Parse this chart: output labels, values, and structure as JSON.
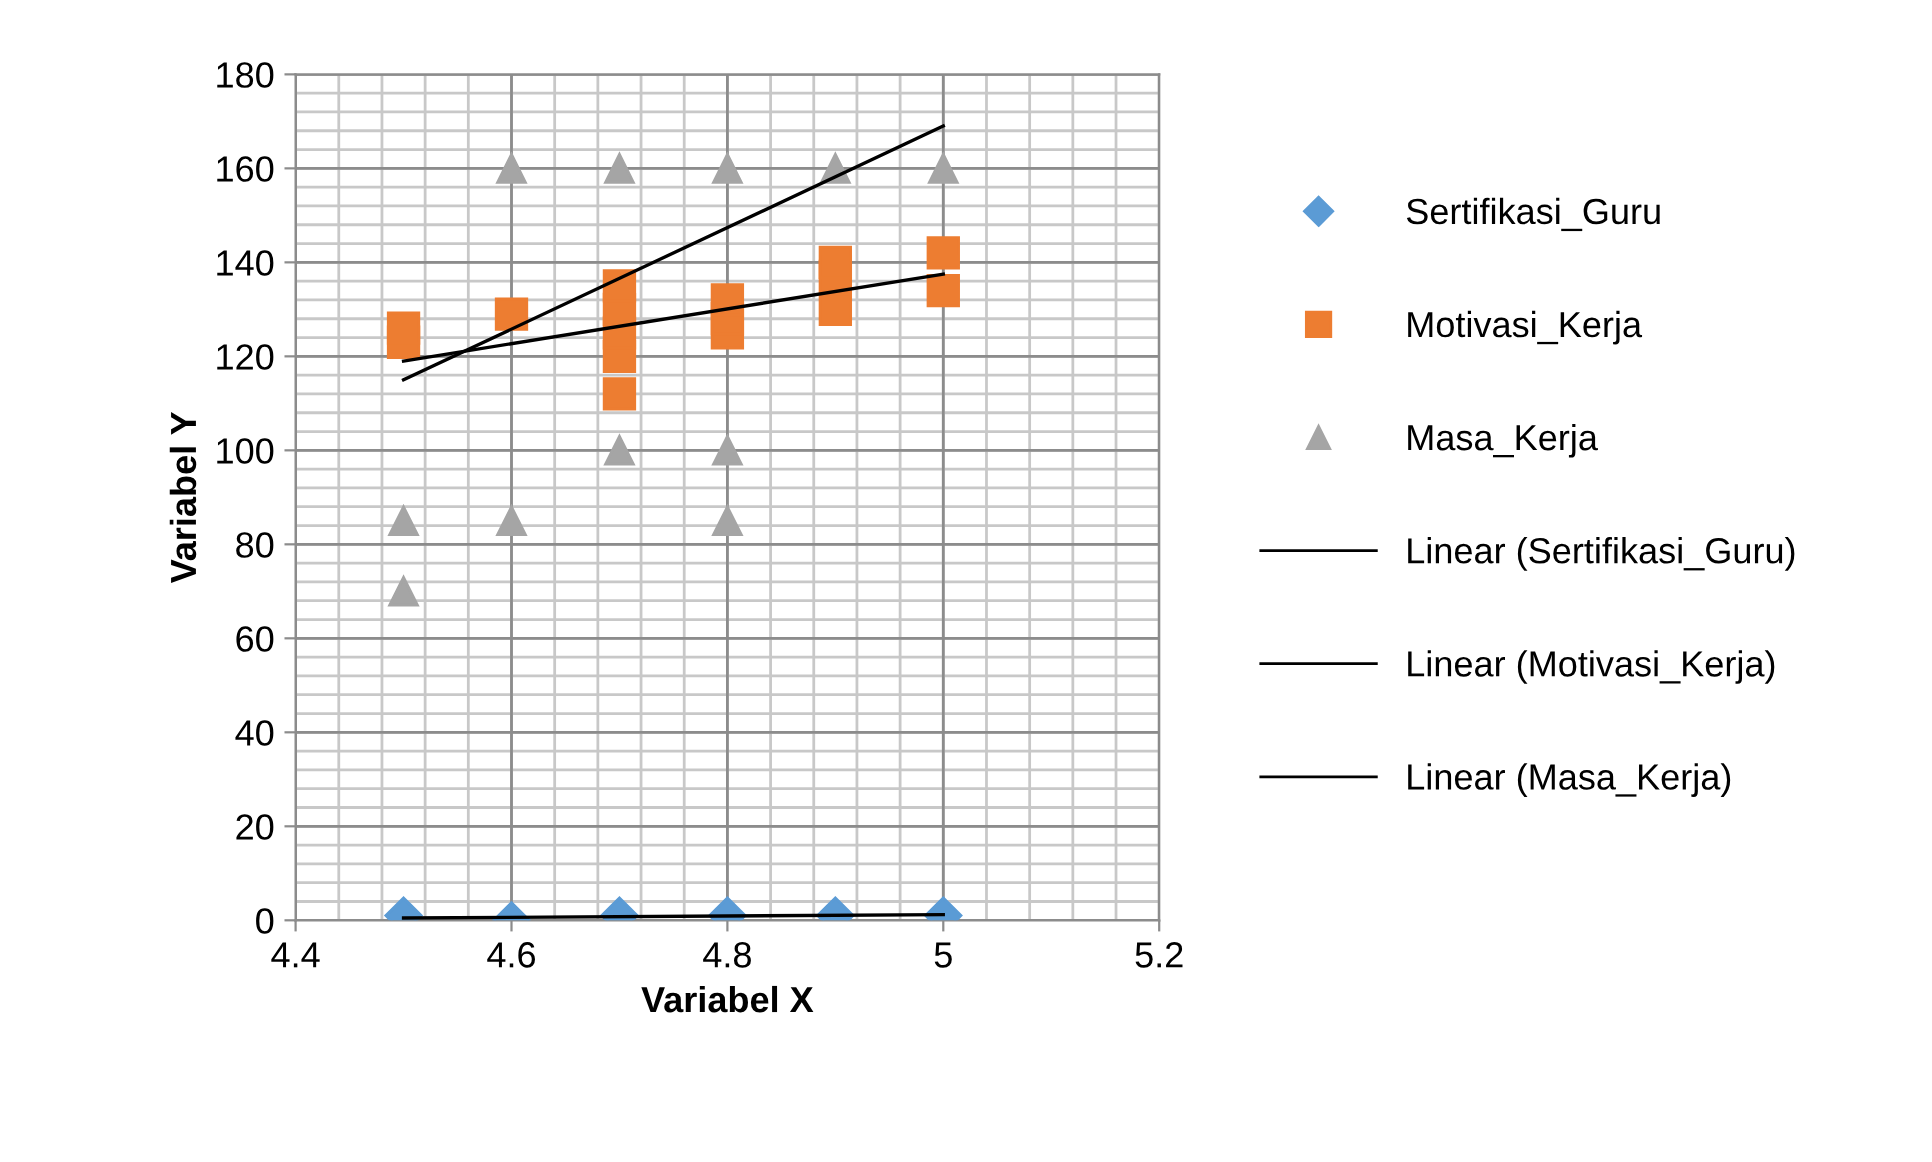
{
  "chart_data": {
    "type": "scatter",
    "xlabel": "Variabel X",
    "ylabel": "Variabel Y",
    "xlim": [
      4.4,
      5.2
    ],
    "xticks": [
      {
        "value": 4.4,
        "label": "4.4"
      },
      {
        "value": 4.6,
        "label": "4.6"
      },
      {
        "value": 4.8,
        "label": "4.8"
      },
      {
        "value": 5,
        "label": "5"
      },
      {
        "value": 5.2,
        "label": "5.2"
      }
    ],
    "ylim": [
      0,
      180
    ],
    "yticks": [
      0,
      20,
      40,
      60,
      80,
      100,
      120,
      140,
      160,
      180
    ],
    "grid": true,
    "legend": "right",
    "series": [
      {
        "name": "Sertifikasi_Guru",
        "marker": "diamond",
        "color": "#5b9bd5",
        "x": [
          4.5,
          4.6,
          4.7,
          4.8,
          4.9,
          5.0
        ],
        "values": [
          1,
          0,
          1,
          1,
          1,
          1
        ]
      },
      {
        "name": "Motivasi_Kerja",
        "marker": "square",
        "color": "#ed7d31",
        "x": [
          4.5,
          4.5,
          4.6,
          4.7,
          4.7,
          4.7,
          4.7,
          4.7,
          4.8,
          4.8,
          4.8,
          4.9,
          4.9,
          4.9,
          5.0,
          5.0
        ],
        "values": [
          123,
          126,
          129,
          112,
          120,
          125,
          130,
          135,
          125,
          128,
          132,
          130,
          137,
          140,
          134,
          142
        ]
      },
      {
        "name": "Masa_Kerja",
        "marker": "triangle",
        "color": "#a5a5a5",
        "x": [
          4.5,
          4.5,
          4.6,
          4.6,
          4.7,
          4.7,
          4.8,
          4.8,
          4.8,
          4.9,
          5.0
        ],
        "values": [
          85,
          70,
          160,
          85,
          160,
          100,
          160,
          100,
          85,
          160,
          160
        ]
      },
      {
        "name": "Linear (Sertifikasi_Guru)",
        "type": "line",
        "marker": "none",
        "color": "#000000",
        "x": [
          4.5,
          5.0
        ],
        "values": [
          0.5,
          1.2
        ]
      },
      {
        "name": "Linear (Motivasi_Kerja)",
        "type": "line",
        "marker": "none",
        "color": "#000000",
        "x": [
          4.5,
          5.0
        ],
        "values": [
          119,
          137.5
        ]
      },
      {
        "name": "Linear (Masa_Kerja)",
        "type": "line",
        "marker": "none",
        "color": "#000000",
        "x": [
          4.5,
          5.0
        ],
        "values": [
          115,
          169
        ]
      }
    ]
  }
}
